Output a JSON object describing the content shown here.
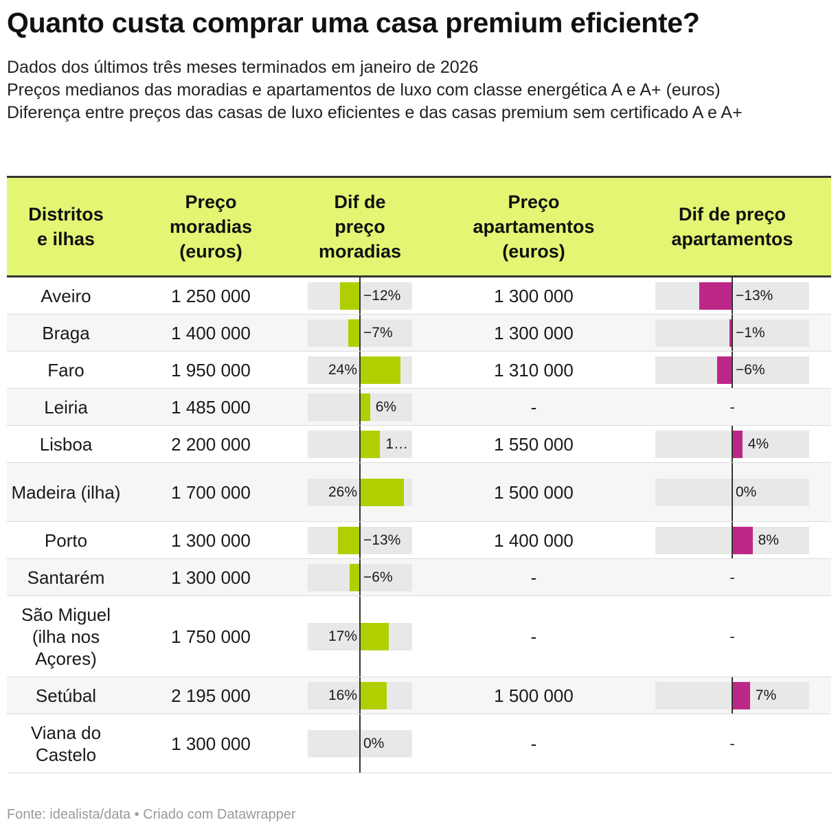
{
  "title": "Quanto custa comprar uma casa premium eficiente?",
  "subtitle_lines": [
    "Dados dos últimos três meses terminados em janeiro de 2026",
    "Preços medianos das moradias e apartamentos de luxo com classe energética A e A+ (euros)",
    "Diferença entre preços das casas de luxo eficientes e das casas premium sem certificado A e A+"
  ],
  "headers": {
    "district": "Distritos e ilhas",
    "price_houses": "Preço moradias (euros)",
    "diff_houses": "Dif de preço moradias",
    "price_apartments": "Preço apartamentos (euros)",
    "diff_apartments": "Dif de preço apartamentos"
  },
  "colors": {
    "header_bg": "#e3f573",
    "bar_houses": "#b1cf00",
    "bar_apartments": "#bd2888",
    "track": "#e8e8e8"
  },
  "chart_data": {
    "type": "table",
    "columns": [
      "Distritos e ilhas",
      "Preço moradias (euros)",
      "Dif de preço moradias",
      "Preço apartamentos (euros)",
      "Dif de preço apartamentos"
    ],
    "rows": [
      {
        "district": "Aveiro",
        "price_houses": "1 250 000",
        "diff_houses": -12,
        "diff_houses_label": "−12%",
        "price_apartments": "1 300 000",
        "diff_apartments": -13,
        "diff_apartments_label": "−13%"
      },
      {
        "district": "Braga",
        "price_houses": "1 400 000",
        "diff_houses": -7,
        "diff_houses_label": "−7%",
        "price_apartments": "1 300 000",
        "diff_apartments": -1,
        "diff_apartments_label": "−1%"
      },
      {
        "district": "Faro",
        "price_houses": "1 950 000",
        "diff_houses": 24,
        "diff_houses_label": "24%",
        "price_apartments": "1 310 000",
        "diff_apartments": -6,
        "diff_apartments_label": "−6%"
      },
      {
        "district": "Leiria",
        "price_houses": "1 485 000",
        "diff_houses": 6,
        "diff_houses_label": "6%",
        "price_apartments": "-",
        "diff_apartments": null,
        "diff_apartments_label": "-"
      },
      {
        "district": "Lisboa",
        "price_houses": "2 200 000",
        "diff_houses": 12,
        "diff_houses_label": "1…",
        "price_apartments": "1 550 000",
        "diff_apartments": 4,
        "diff_apartments_label": "4%"
      },
      {
        "district": "Madeira (ilha)",
        "price_houses": "1 700 000",
        "diff_houses": 26,
        "diff_houses_label": "26%",
        "price_apartments": "1 500 000",
        "diff_apartments": 0,
        "diff_apartments_label": "0%"
      },
      {
        "district": "Porto",
        "price_houses": "1 300 000",
        "diff_houses": -13,
        "diff_houses_label": "−13%",
        "price_apartments": "1 400 000",
        "diff_apartments": 8,
        "diff_apartments_label": "8%"
      },
      {
        "district": "Santarém",
        "price_houses": "1 300 000",
        "diff_houses": -6,
        "diff_houses_label": "−6%",
        "price_apartments": "-",
        "diff_apartments": null,
        "diff_apartments_label": "-"
      },
      {
        "district": "São Miguel (ilha nos Açores)",
        "price_houses": "1 750 000",
        "diff_houses": 17,
        "diff_houses_label": "17%",
        "price_apartments": "-",
        "diff_apartments": null,
        "diff_apartments_label": "-"
      },
      {
        "district": "Setúbal",
        "price_houses": "2 195 000",
        "diff_houses": 16,
        "diff_houses_label": "16%",
        "price_apartments": "1 500 000",
        "diff_apartments": 7,
        "diff_apartments_label": "7%"
      },
      {
        "district": "Viana do Castelo",
        "price_houses": "1 300 000",
        "diff_houses": 0,
        "diff_houses_label": "0%",
        "price_apartments": "-",
        "diff_apartments": null,
        "diff_apartments_label": "-"
      }
    ],
    "diff_houses_range": [
      -30,
      30
    ],
    "diff_apartments_range": [
      -50,
      50
    ]
  },
  "footer": "Fonte: idealista/data • Criado com Datawrapper"
}
